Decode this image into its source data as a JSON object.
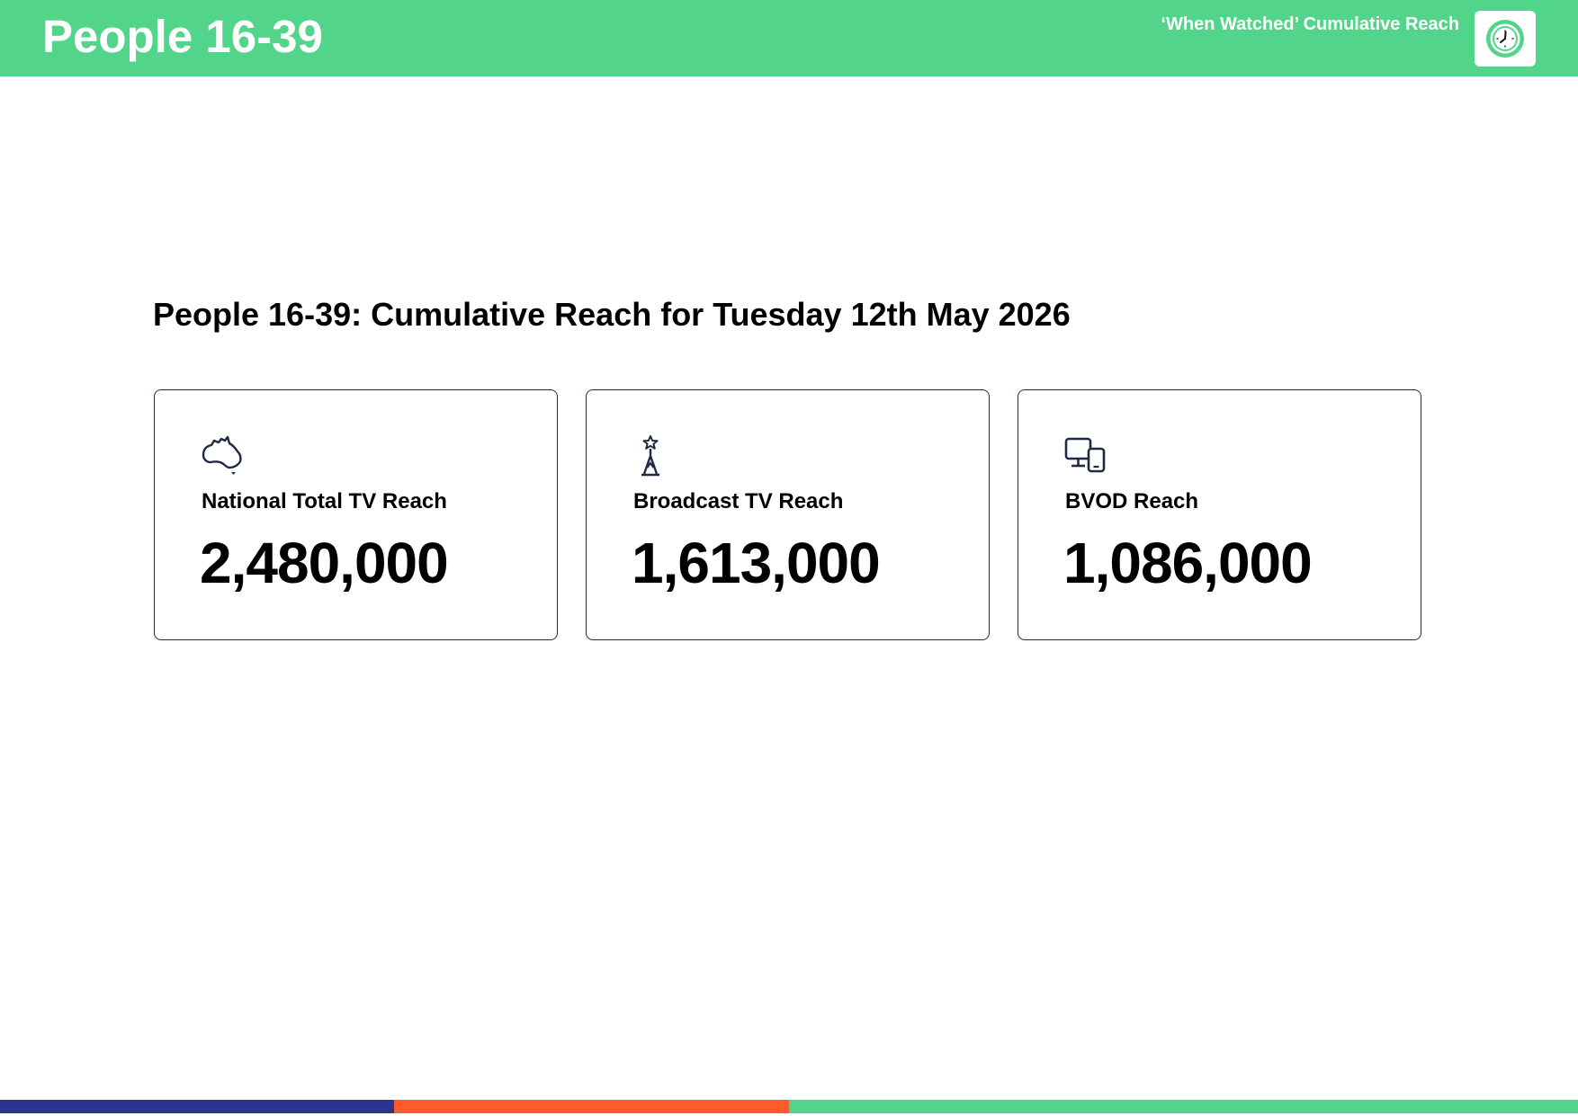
{
  "header": {
    "title": "People 16-39",
    "subtitle": "‘When Watched’ Cumulative Reach",
    "logo_icon": "clock-icon",
    "background_color": "#52D58A"
  },
  "report": {
    "title": "People 16-39: Cumulative Reach for Tuesday 12th May 2026"
  },
  "cards": [
    {
      "icon": "australia-map-icon",
      "label": "National Total TV Reach",
      "value": "2,480,000"
    },
    {
      "icon": "broadcast-tower-icon",
      "label": "Broadcast TV Reach",
      "value": "1,613,000"
    },
    {
      "icon": "devices-icon",
      "label": "BVOD Reach",
      "value": "1,086,000"
    }
  ],
  "footer": {
    "colors": [
      "#2B3590",
      "#FF5A2C",
      "#52D58A"
    ]
  }
}
